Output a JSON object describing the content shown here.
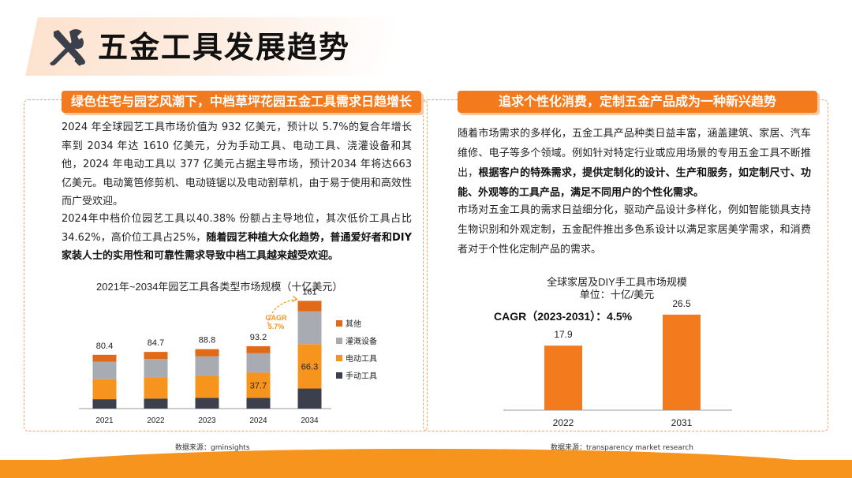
{
  "header": {
    "title": "五金工具发展趋势",
    "icon": "tools-icon"
  },
  "left": {
    "banner": "绿色住宅与园艺风潮下，中档草坪花园五金工具需求日趋增长",
    "p1": "2024 年全球园艺工具市场价值为 932 亿美元，预计以 5.7%的复合年增长率到 2034 年达 1610 亿美元，分为手动工具、电动工具、浇灌设备和其他，2024 年电动工具以 377 亿美元占据主导市场，预计2034 年将达663 亿美元。电动篱笆修剪机、电动链锯以及电动割草机，由于易于使用和高效性而广受欢迎。",
    "p2_normal": "2024年中档价位园艺工具以40.38% 份额占主导地位，其次低价工具占比34.62%，高价位工具占25%，",
    "p2_bold": "随着园艺种植大众化趋势，普通爱好者和DIY家装人士的实用性和可靠性需求导致中档工具越来越受欢迎。",
    "source": "数据来源：gminsights"
  },
  "right": {
    "banner": "追求个性化消费，定制五金产品成为一种新兴趋势",
    "p1_normal": "随着市场需求的多样化，五金工具产品种类日益丰富，涵盖建筑、家居、汽车维修、电子等多个领域。例如针对特定行业或应用场景的专用五金工具不断推出，",
    "p1_bold": "根据客户的特殊需求，提供定制化的设计、生产和服务，如定制尺寸、功能、外观等的工具产品，满足不同用户的个性化需求。",
    "p2": "市场对五金工具的需求日益细分化，驱动产品设计多样化，例如智能锁具支持生物识别和外观定制，五金配件推出多色系设计以满足家居美学需求，和消费者对于个性化定制产品的需求。",
    "source": "数据来源：transparency market research"
  },
  "colors": {
    "accent": "#f47a1e",
    "dark": "#3c3f4c",
    "gray": "#a9abb3",
    "light_orange": "#f9c79d"
  },
  "chart_data": [
    {
      "type": "bar",
      "stacked": true,
      "title": "2021年~2034年园艺工具各类型市场规模（十亿美元）",
      "categories": [
        "2021",
        "2022",
        "2023",
        "2024",
        "2034"
      ],
      "totals": [
        80.4,
        84.7,
        88.8,
        93.2,
        161
      ],
      "series": [
        {
          "name": "手动工具",
          "color": "#3c3f4c",
          "values": [
            14,
            15,
            16,
            16,
            30
          ]
        },
        {
          "name": "电动工具",
          "color": "#f7941d",
          "values": [
            30,
            32,
            33,
            37.7,
            66.3
          ]
        },
        {
          "name": "灌溉设备",
          "color": "#a9abb3",
          "values": [
            26,
            27,
            29,
            29,
            49
          ]
        },
        {
          "name": "其他",
          "color": "#e06a17",
          "values": [
            10.4,
            10.7,
            10.8,
            10.5,
            15.7
          ]
        }
      ],
      "segment_labels": [
        {
          "category": "2024",
          "series": "电动工具",
          "text": "37.7"
        },
        {
          "category": "2034",
          "series": "电动工具",
          "text": "66.3"
        }
      ],
      "annotation": {
        "text1": "GAGR",
        "text2": "5.7%"
      },
      "ylim": [
        0,
        165
      ],
      "legend": "right"
    },
    {
      "type": "bar",
      "title": "全球家居及DIY手工具市场规模",
      "subtitle": "单位：十亿/美元",
      "annotation": "CAGR（2023-2031）：4.5%",
      "categories": [
        "2022",
        "2031"
      ],
      "values": [
        17.9,
        26.5
      ],
      "color": "#f47a1e",
      "ylim": [
        0,
        28
      ]
    }
  ]
}
